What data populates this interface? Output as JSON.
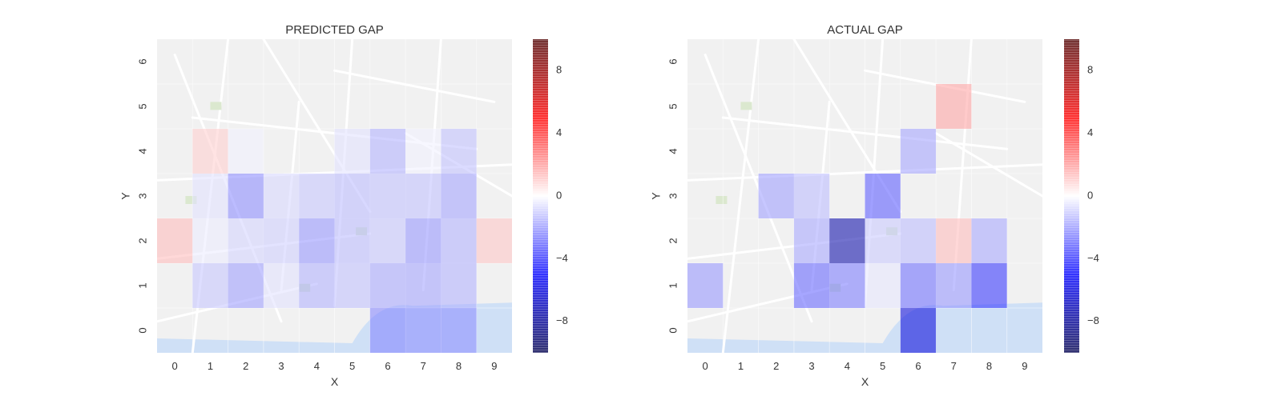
{
  "chart_data": [
    {
      "type": "heatmap",
      "title": "PREDICTED GAP",
      "xlabel": "X",
      "ylabel": "Y",
      "x_ticks": [
        "0",
        "1",
        "2",
        "3",
        "4",
        "5",
        "6",
        "7",
        "8",
        "9"
      ],
      "y_ticks": [
        "0",
        "1",
        "2",
        "3",
        "4",
        "5",
        "6"
      ],
      "colorbar": {
        "range": [
          -10,
          10
        ],
        "ticks": [
          "8",
          "4",
          "0",
          "−4",
          "−8"
        ],
        "tick_values": [
          8,
          4,
          0,
          -4,
          -8
        ],
        "colormap": "seismic"
      },
      "cells": [
        {
          "x": 6,
          "y": 0,
          "v": -2.5
        },
        {
          "x": 7,
          "y": 0,
          "v": -2.3
        },
        {
          "x": 8,
          "y": 0,
          "v": -2.3
        },
        {
          "x": 1,
          "y": 1,
          "v": -1.2
        },
        {
          "x": 2,
          "y": 1,
          "v": -2.0
        },
        {
          "x": 3,
          "y": 1,
          "v": -0.6
        },
        {
          "x": 4,
          "y": 1,
          "v": -1.6
        },
        {
          "x": 5,
          "y": 1,
          "v": -1.3
        },
        {
          "x": 6,
          "y": 1,
          "v": -1.8
        },
        {
          "x": 7,
          "y": 1,
          "v": -1.9
        },
        {
          "x": 8,
          "y": 1,
          "v": -1.6
        },
        {
          "x": 0,
          "y": 2,
          "v": 1.4
        },
        {
          "x": 1,
          "y": 2,
          "v": -0.4
        },
        {
          "x": 2,
          "y": 2,
          "v": -0.9
        },
        {
          "x": 3,
          "y": 2,
          "v": -1.0
        },
        {
          "x": 4,
          "y": 2,
          "v": -2.2
        },
        {
          "x": 5,
          "y": 2,
          "v": -1.4
        },
        {
          "x": 6,
          "y": 2,
          "v": -1.2
        },
        {
          "x": 7,
          "y": 2,
          "v": -2.2
        },
        {
          "x": 8,
          "y": 2,
          "v": -1.6
        },
        {
          "x": 9,
          "y": 2,
          "v": 1.2
        },
        {
          "x": 1,
          "y": 3,
          "v": -0.6
        },
        {
          "x": 2,
          "y": 3,
          "v": -2.4
        },
        {
          "x": 3,
          "y": 3,
          "v": -0.8
        },
        {
          "x": 4,
          "y": 3,
          "v": -1.2
        },
        {
          "x": 5,
          "y": 3,
          "v": -1.4
        },
        {
          "x": 6,
          "y": 3,
          "v": -1.3
        },
        {
          "x": 7,
          "y": 3,
          "v": -1.3
        },
        {
          "x": 8,
          "y": 3,
          "v": -1.9
        },
        {
          "x": 1,
          "y": 4,
          "v": 1.0
        },
        {
          "x": 2,
          "y": 4,
          "v": -0.3
        },
        {
          "x": 5,
          "y": 4,
          "v": -0.6
        },
        {
          "x": 6,
          "y": 4,
          "v": -1.6
        },
        {
          "x": 7,
          "y": 4,
          "v": -0.3
        },
        {
          "x": 8,
          "y": 4,
          "v": -1.3
        }
      ]
    },
    {
      "type": "heatmap",
      "title": "ACTUAL GAP",
      "xlabel": "X",
      "ylabel": "Y",
      "x_ticks": [
        "0",
        "1",
        "2",
        "3",
        "4",
        "5",
        "6",
        "7",
        "8",
        "9"
      ],
      "y_ticks": [
        "0",
        "1",
        "2",
        "3",
        "4",
        "5",
        "6"
      ],
      "colorbar": {
        "range": [
          -10,
          10
        ],
        "ticks": [
          "8",
          "4",
          "0",
          "−4",
          "−8"
        ],
        "tick_values": [
          8,
          4,
          0,
          -4,
          -8
        ],
        "colormap": "seismic"
      },
      "cells": [
        {
          "x": 6,
          "y": 0,
          "v": -6.0
        },
        {
          "x": 0,
          "y": 1,
          "v": -2.2
        },
        {
          "x": 3,
          "y": 1,
          "v": -3.2
        },
        {
          "x": 4,
          "y": 1,
          "v": -2.7
        },
        {
          "x": 5,
          "y": 1,
          "v": -0.5
        },
        {
          "x": 6,
          "y": 1,
          "v": -3.0
        },
        {
          "x": 7,
          "y": 1,
          "v": -2.2
        },
        {
          "x": 8,
          "y": 1,
          "v": -4.2
        },
        {
          "x": 3,
          "y": 2,
          "v": -1.8
        },
        {
          "x": 4,
          "y": 2,
          "v": -7.5
        },
        {
          "x": 5,
          "y": 2,
          "v": -1.1
        },
        {
          "x": 6,
          "y": 2,
          "v": -1.4
        },
        {
          "x": 7,
          "y": 2,
          "v": 1.4
        },
        {
          "x": 8,
          "y": 2,
          "v": -1.8
        },
        {
          "x": 2,
          "y": 3,
          "v": -2.0
        },
        {
          "x": 3,
          "y": 3,
          "v": -1.4
        },
        {
          "x": 5,
          "y": 3,
          "v": -3.4
        },
        {
          "x": 6,
          "y": 4,
          "v": -1.9
        },
        {
          "x": 7,
          "y": 5,
          "v": 1.9
        }
      ]
    }
  ]
}
